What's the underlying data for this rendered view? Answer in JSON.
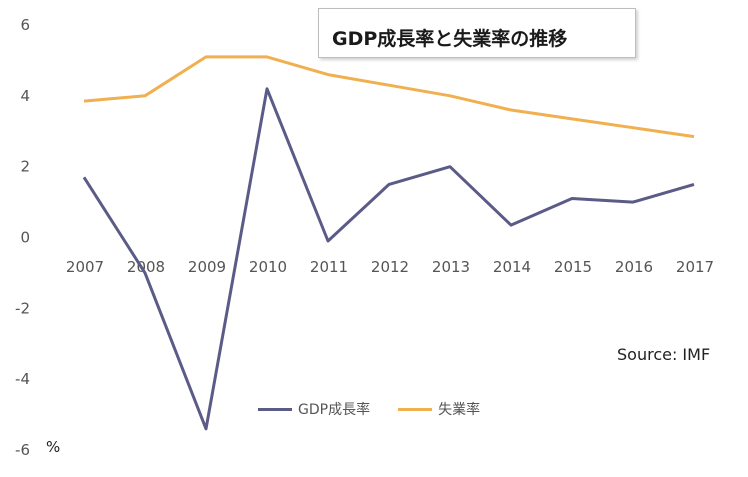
{
  "chart_data": {
    "type": "line",
    "title": "GDP成長率と失業率の推移",
    "x": [
      "2007",
      "2008",
      "2009",
      "2010",
      "2011",
      "2012",
      "2013",
      "2014",
      "2015",
      "2016",
      "2017"
    ],
    "series": [
      {
        "name": "GDP成長率",
        "color": "#5b5b87",
        "values": [
          1.7,
          -1.0,
          -5.4,
          4.2,
          -0.1,
          1.5,
          2.0,
          0.35,
          1.1,
          1.0,
          1.5
        ]
      },
      {
        "name": "失業率",
        "color": "#f0b050",
        "values": [
          3.85,
          4.0,
          5.1,
          5.1,
          4.6,
          4.3,
          4.0,
          3.6,
          3.35,
          3.1,
          2.85
        ]
      }
    ],
    "ylim": [
      -6,
      6
    ],
    "yticks": [
      "6",
      "4",
      "2",
      "0",
      "-2",
      "-4",
      "-6"
    ],
    "ylabel": "%",
    "xlabel": "",
    "source": "Source: IMF",
    "grid": false,
    "legend_position": "bottom-center"
  }
}
